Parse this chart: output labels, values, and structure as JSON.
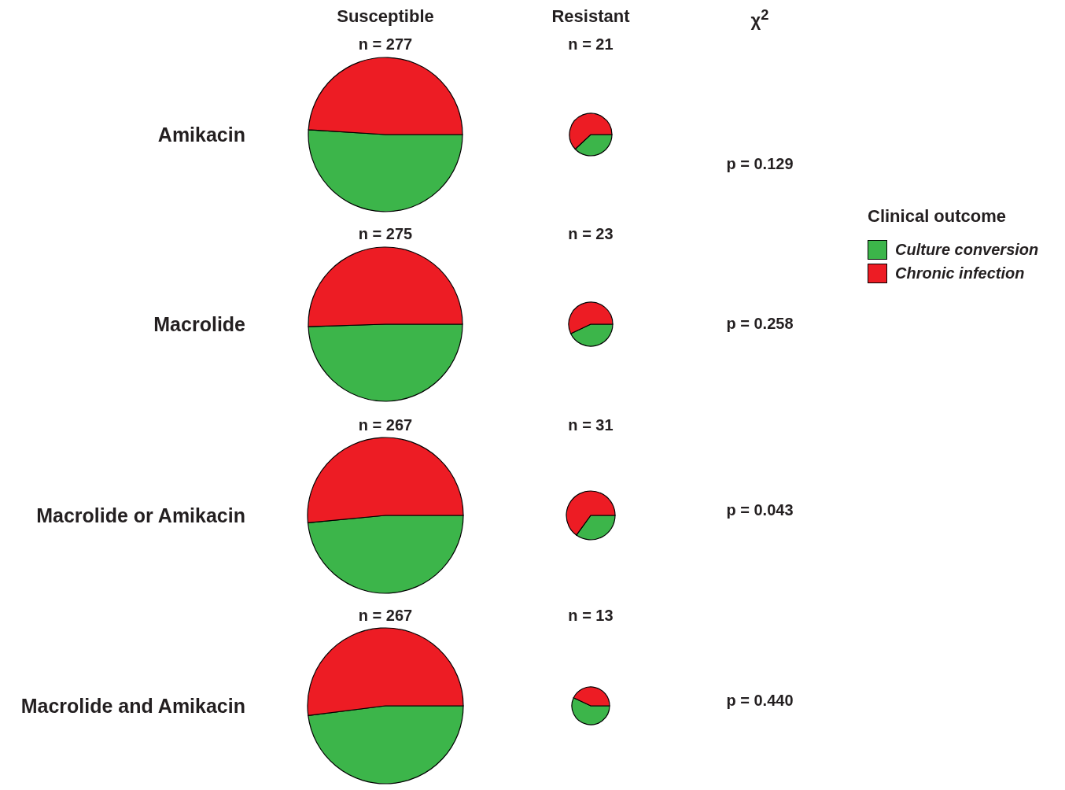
{
  "chart_data": [
    {
      "type": "other",
      "annotations": [
        "Susceptible",
        "Resistant",
        "χ$^{2}$"
      ]
    },
    {
      "type": "pie",
      "title": "n = 277",
      "ylabel": "Amikacin",
      "categories": [
        "Culture conversion",
        "Chronic infection"
      ],
      "values": [
        51,
        49
      ],
      "colors": [
        "#3cb54a",
        "#ed1c24"
      ],
      "legend": "right",
      "legend_title": "Clinical outcome"
    },
    {
      "type": "pie",
      "title": "n = 21",
      "annotations": [
        "p = 0.129"
      ],
      "values": [
        38,
        62
      ],
      "colors": [
        "#3cb54a",
        "#ed1c24"
      ]
    },
    {
      "type": "pie",
      "title": "n = 275",
      "ylabel": "Macrolide",
      "values": [
        49.5,
        50.5
      ],
      "colors": [
        "#3cb54a",
        "#ed1c24"
      ]
    },
    {
      "type": "pie",
      "title": "n = 23",
      "annotations": [
        "p = 0.258"
      ],
      "values": [
        43,
        57
      ],
      "colors": [
        "#3cb54a",
        "#ed1c24"
      ]
    },
    {
      "type": "pie",
      "title": "n = 267",
      "ylabel": "Macrolide or Amikacin",
      "values": [
        48.5,
        51.5
      ],
      "colors": [
        "#3cb54a",
        "#ed1c24"
      ]
    },
    {
      "type": "pie",
      "title": "n = 31",
      "annotations": [
        "p = 0.043"
      ],
      "values": [
        35,
        65
      ],
      "colors": [
        "#3cb54a",
        "#ed1c24"
      ]
    },
    {
      "type": "pie",
      "title": "n = 267",
      "ylabel": "Macrolide and Amikacin",
      "values": [
        48,
        52
      ],
      "colors": [
        "#3cb54a",
        "#ed1c24"
      ]
    },
    {
      "type": "pie",
      "title": "n = 13",
      "annotations": [
        "p = 0.440"
      ],
      "values": [
        57,
        43
      ],
      "colors": [
        "#3cb54a",
        "#ed1c24"
      ]
    }
  ]
}
